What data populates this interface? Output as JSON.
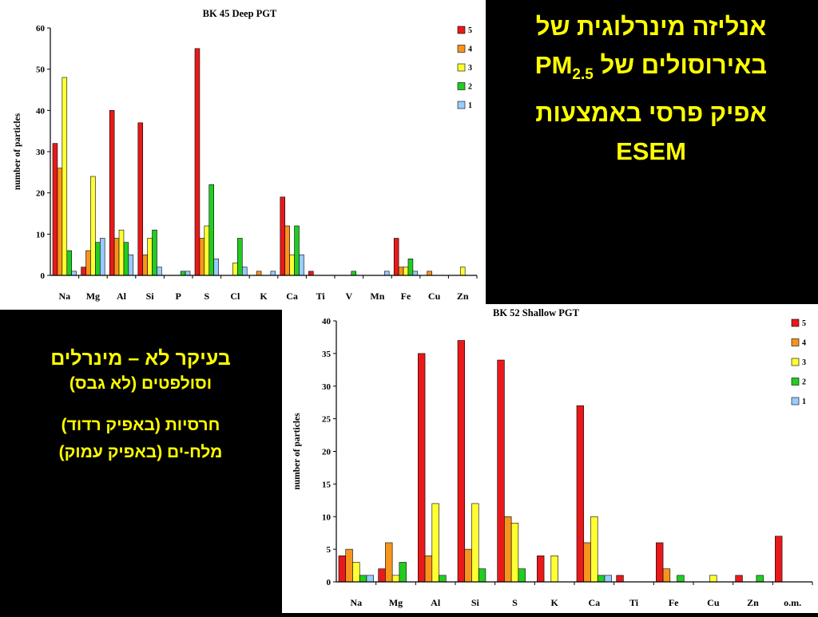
{
  "slide": {
    "title_line1": "אנליזה מינרלוגית של",
    "title_line2_prefix": "באירוסולים של",
    "title_line2_pm": "PM",
    "title_line2_sub": "2.5",
    "title_line3": "אפיק פרסי באמצעות",
    "title_line4": "ESEM",
    "note_line1": "בעיקר לא – מינרלים",
    "note_line2": "וסולפטים (לא גבס)",
    "note_line3": "חרסיות (באפיק רדוד)",
    "note_line4": "מלח-ים (באפיק עמוק)"
  },
  "colors": {
    "series_5": "#e8191a",
    "series_4": "#f7941d",
    "series_3": "#ffff33",
    "series_2": "#22cc22",
    "series_1": "#99ccff",
    "text_highlight": "#ffff00"
  },
  "chart_data": [
    {
      "type": "bar",
      "title": "BK 45 Deep PGT",
      "xlabel": "",
      "ylabel": "number of particles",
      "ylim": [
        0,
        60
      ],
      "yticks": [
        0,
        10,
        20,
        30,
        40,
        50,
        60
      ],
      "grid": false,
      "legend": "top-right",
      "categories": [
        "Na",
        "Mg",
        "Al",
        "Si",
        "P",
        "S",
        "Cl",
        "K",
        "Ca",
        "Ti",
        "V",
        "Mn",
        "Fe",
        "Cu",
        "Zn"
      ],
      "series": [
        {
          "name": "5",
          "color": "#e8191a",
          "values": [
            32,
            2,
            40,
            37,
            0,
            55,
            0,
            0,
            19,
            1,
            0,
            0,
            9,
            0,
            0
          ]
        },
        {
          "name": "4",
          "color": "#f7941d",
          "values": [
            26,
            6,
            9,
            5,
            0,
            9,
            0,
            1,
            12,
            0,
            0,
            0,
            2,
            1,
            0
          ]
        },
        {
          "name": "3",
          "color": "#ffff33",
          "values": [
            48,
            24,
            11,
            9,
            0,
            12,
            3,
            0,
            5,
            0,
            0,
            0,
            2,
            0,
            2
          ]
        },
        {
          "name": "2",
          "color": "#22cc22",
          "values": [
            6,
            8,
            8,
            11,
            1,
            22,
            9,
            0,
            12,
            0,
            1,
            0,
            4,
            0,
            0
          ]
        },
        {
          "name": "1",
          "color": "#99ccff",
          "values": [
            1,
            9,
            5,
            2,
            1,
            4,
            2,
            1,
            5,
            0,
            0,
            1,
            1,
            0,
            0
          ]
        }
      ]
    },
    {
      "type": "bar",
      "title": "BK 52 Shallow PGT",
      "xlabel": "",
      "ylabel": "number of particles",
      "ylim": [
        0,
        40
      ],
      "yticks": [
        0,
        5,
        10,
        15,
        20,
        25,
        30,
        35,
        40
      ],
      "grid": false,
      "legend": "top-right",
      "categories": [
        "Na",
        "Mg",
        "Al",
        "Si",
        "S",
        "K",
        "Ca",
        "Ti",
        "Fe",
        "Cu",
        "Zn",
        "o.m."
      ],
      "series": [
        {
          "name": "5",
          "color": "#e8191a",
          "values": [
            4,
            2,
            35,
            37,
            34,
            4,
            27,
            1,
            6,
            0,
            1,
            7
          ]
        },
        {
          "name": "4",
          "color": "#f7941d",
          "values": [
            5,
            6,
            4,
            5,
            10,
            0,
            6,
            0,
            2,
            0,
            0,
            0
          ]
        },
        {
          "name": "3",
          "color": "#ffff33",
          "values": [
            3,
            1,
            12,
            12,
            9,
            4,
            10,
            0,
            0,
            1,
            0,
            0
          ]
        },
        {
          "name": "2",
          "color": "#22cc22",
          "values": [
            1,
            3,
            1,
            2,
            2,
            0,
            1,
            0,
            1,
            0,
            1,
            0
          ]
        },
        {
          "name": "1",
          "color": "#99ccff",
          "values": [
            1,
            0,
            0,
            0,
            0,
            0,
            1,
            0,
            0,
            0,
            0,
            0
          ]
        }
      ]
    }
  ]
}
